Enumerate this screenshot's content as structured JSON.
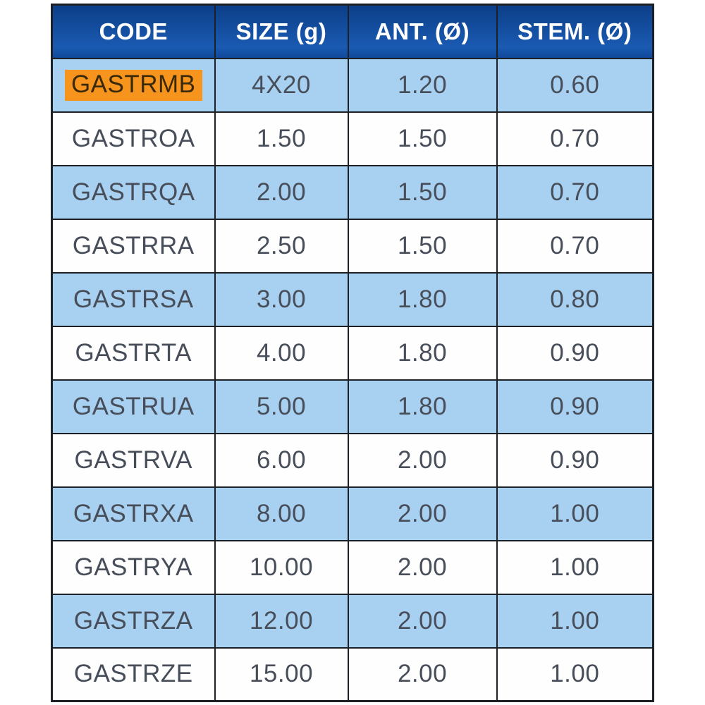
{
  "chart_data": {
    "type": "table",
    "title": "",
    "columns": [
      "CODE",
      "SIZE (g)",
      "ANT. (Ø)",
      "STEM. (Ø)"
    ],
    "column_keys": [
      "code",
      "size",
      "ant",
      "stem"
    ],
    "rows": [
      {
        "code": "GASTRMB",
        "size": "4X20",
        "ant": "1.20",
        "stem": "0.60",
        "highlighted": true
      },
      {
        "code": "GASTROA",
        "size": "1.50",
        "ant": "1.50",
        "stem": "0.70",
        "highlighted": false
      },
      {
        "code": "GASTRQA",
        "size": "2.00",
        "ant": "1.50",
        "stem": "0.70",
        "highlighted": false
      },
      {
        "code": "GASTRRA",
        "size": "2.50",
        "ant": "1.50",
        "stem": "0.70",
        "highlighted": false
      },
      {
        "code": "GASTRSA",
        "size": "3.00",
        "ant": "1.80",
        "stem": "0.80",
        "highlighted": false
      },
      {
        "code": "GASTRTA",
        "size": "4.00",
        "ant": "1.80",
        "stem": "0.90",
        "highlighted": false
      },
      {
        "code": "GASTRUA",
        "size": "5.00",
        "ant": "1.80",
        "stem": "0.90",
        "highlighted": false
      },
      {
        "code": "GASTRVA",
        "size": "6.00",
        "ant": "2.00",
        "stem": "0.90",
        "highlighted": false
      },
      {
        "code": "GASTRXA",
        "size": "8.00",
        "ant": "2.00",
        "stem": "1.00",
        "highlighted": false
      },
      {
        "code": "GASTRYA",
        "size": "10.00",
        "ant": "2.00",
        "stem": "1.00",
        "highlighted": false
      },
      {
        "code": "GASTRZA",
        "size": "12.00",
        "ant": "2.00",
        "stem": "1.00",
        "highlighted": false
      },
      {
        "code": "GASTRZE",
        "size": "15.00",
        "ant": "2.00",
        "stem": "1.00",
        "highlighted": false
      }
    ],
    "highlighted_code": "GASTRMB",
    "layout": {
      "zebra_striping": "first_row_blue",
      "grid": true,
      "legend": "none"
    }
  },
  "colors": {
    "header_bg_top": "#0c3f88",
    "header_bg_bottom": "#1a5ab2",
    "header_text": "#ffffff",
    "row_alt_bg": "#a8d0f1",
    "row_bg": "#fefefe",
    "border": "#1d2126",
    "cell_text": "#474e59",
    "highlight_bg": "#f7941e",
    "highlight_text": "#3a2a09",
    "page_bg": "#ffffff"
  }
}
